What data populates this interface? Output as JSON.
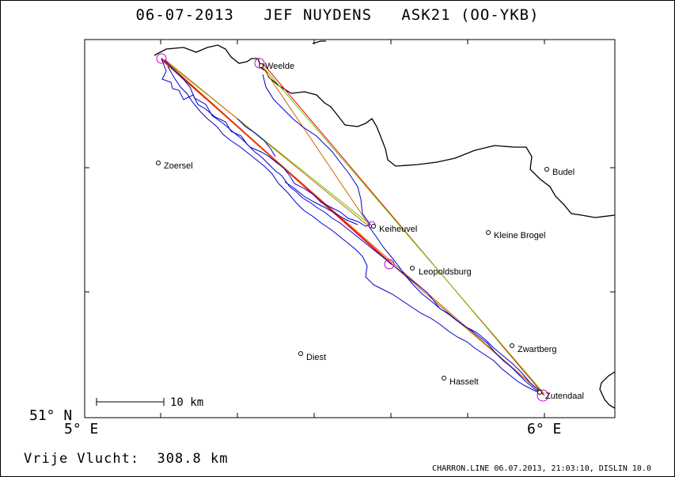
{
  "header": {
    "date": "06-07-2013",
    "pilot": "JEF NUYDENS",
    "glider": "ASK21 (OO-YKB)"
  },
  "axes": {
    "lat_label": "51° N",
    "lon_left_label": "5° E",
    "lon_right_label": "6° E"
  },
  "scale": {
    "label": "10 km"
  },
  "distance": {
    "label": "Vrije Vlucht:",
    "value": "308.8 km"
  },
  "footer": {
    "text": "CHARRON.LINE 06.07.2013, 21:03:10, DISLIN 10.0"
  },
  "cities": [
    {
      "name": "Weelde"
    },
    {
      "name": "Zoersel"
    },
    {
      "name": "Budel"
    },
    {
      "name": "Keiheuvel"
    },
    {
      "name": "Kleine Brogel"
    },
    {
      "name": "Leopoldsburg"
    },
    {
      "name": "Zwartberg"
    },
    {
      "name": "Diest"
    },
    {
      "name": "Hasselt"
    },
    {
      "name": "Zutendaal"
    }
  ],
  "colors": {
    "border": "#000000",
    "track": "#0000cc",
    "turnpoint": "#cc00cc",
    "leg_red": "#ff0000",
    "leg_green": "#66cc00",
    "leg_orange": "#cc6600"
  }
}
